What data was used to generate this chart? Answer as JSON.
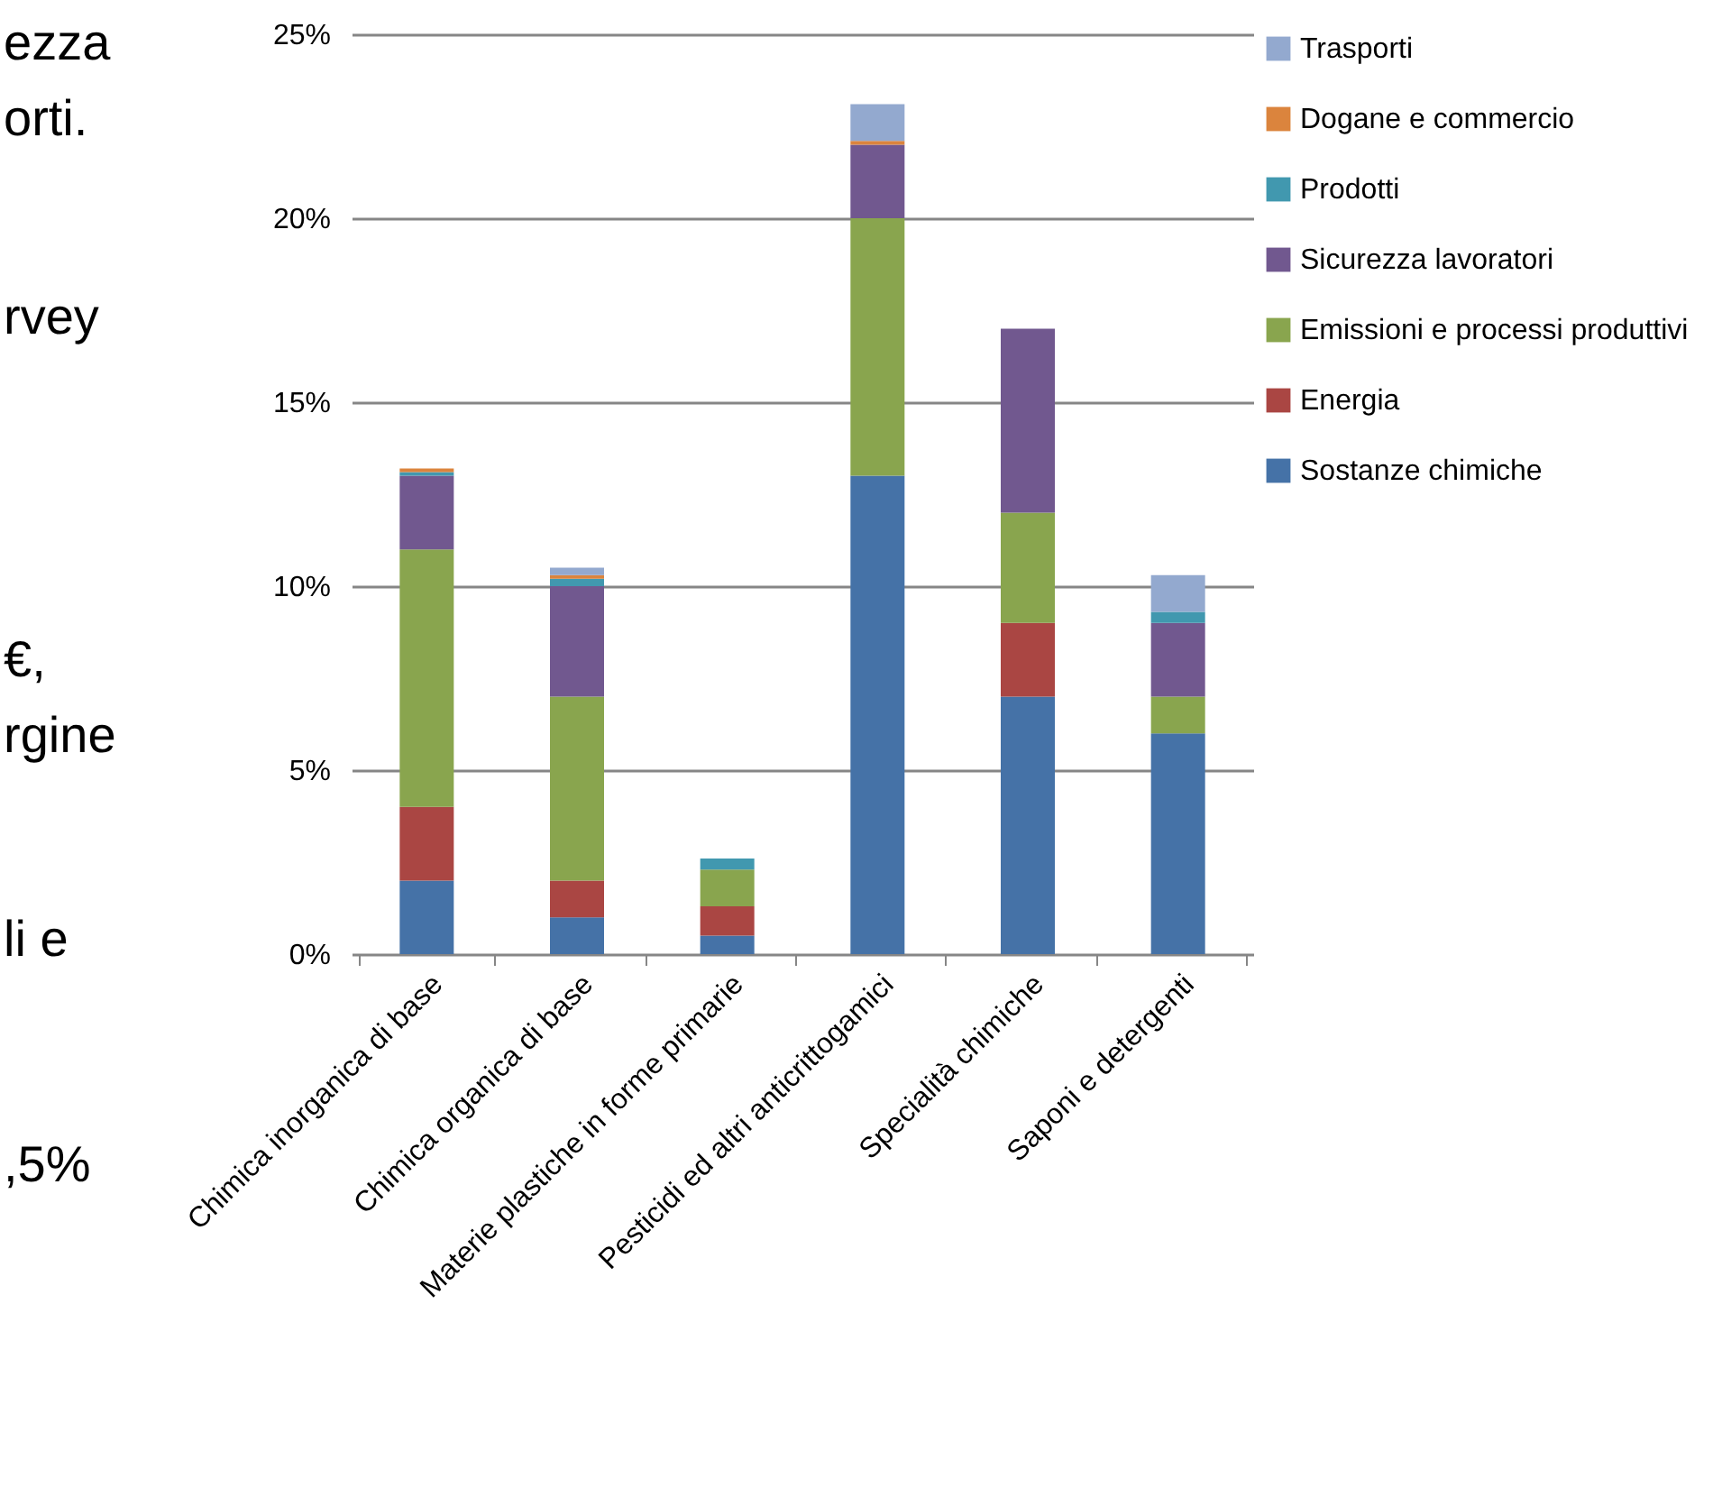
{
  "chart_data": {
    "type": "bar",
    "stacked": true,
    "categories": [
      "Chimica inorganica di base",
      "Chimica organica di base",
      "Materie plastiche in forme primarie",
      "Pesticidi ed altri anticrittogamici",
      "Specialità chimiche",
      "Saponi e detergenti"
    ],
    "series": [
      {
        "name": "Sostanze chimiche",
        "color": "#4572a7",
        "values": [
          2,
          1,
          0.5,
          13,
          7,
          6
        ]
      },
      {
        "name": "Energia",
        "color": "#aa4643",
        "values": [
          2,
          1,
          0.8,
          0,
          2,
          0
        ]
      },
      {
        "name": "Emissioni e processi produttivi",
        "color": "#89a54e",
        "values": [
          7,
          5,
          1,
          7,
          3,
          1
        ]
      },
      {
        "name": "Sicurezza lavoratori",
        "color": "#71588f",
        "values": [
          2,
          3,
          0,
          2,
          5,
          2
        ]
      },
      {
        "name": "Prodotti",
        "color": "#4198af",
        "values": [
          0.1,
          0.2,
          0.3,
          0,
          0,
          0.3
        ]
      },
      {
        "name": "Dogane e commercio",
        "color": "#db843d",
        "values": [
          0.1,
          0.1,
          0,
          0.1,
          0,
          0
        ]
      },
      {
        "name": "Trasporti",
        "color": "#93a9cf",
        "values": [
          0,
          0.2,
          0,
          1,
          0,
          1
        ]
      }
    ],
    "ylim": [
      0,
      25
    ],
    "yticks": [
      {
        "value": 0,
        "label": "0%"
      },
      {
        "value": 5,
        "label": "5%"
      },
      {
        "value": 10,
        "label": "10%"
      },
      {
        "value": 15,
        "label": "15%"
      },
      {
        "value": 20,
        "label": "20%"
      },
      {
        "value": 25,
        "label": "25%"
      }
    ],
    "grid": "y",
    "legend": "right",
    "annotations": [
      "ezza",
      "orti.",
      "rvey",
      "€,",
      "rgine",
      "li e",
      ",5%"
    ]
  }
}
